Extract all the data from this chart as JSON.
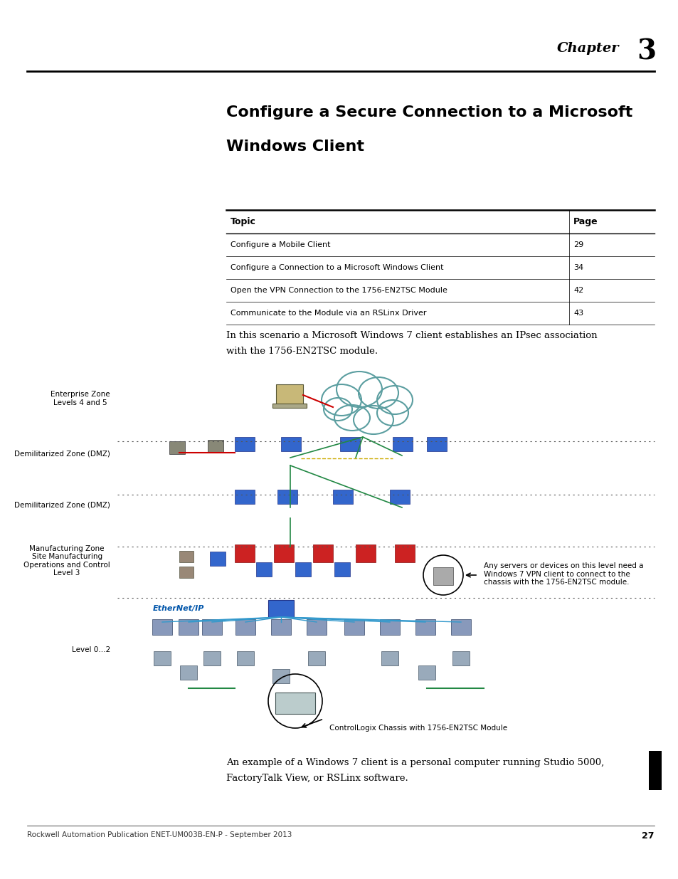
{
  "page_background": "#ffffff",
  "chapter_label": "Chapter",
  "chapter_number": "3",
  "title_line1": "Configure a Secure Connection to a Microsoft",
  "title_line2": "Windows Client",
  "table_headers": [
    "Topic",
    "Page"
  ],
  "table_rows": [
    [
      "Configure a Mobile Client",
      "29"
    ],
    [
      "Configure a Connection to a Microsoft Windows Client",
      "34"
    ],
    [
      "Open the VPN Connection to the 1756-EN2TSC Module",
      "42"
    ],
    [
      "Communicate to the Module via an RSLinx Driver",
      "43"
    ]
  ],
  "intro_text_line1": "In this scenario a Microsoft Windows 7 client establishes an IPsec association",
  "intro_text_line2": "with the 1756-EN2TSC module.",
  "annotation_right": "Any servers or devices on this level need a\nWindows 7 VPN client to connect to the\nchassis with the 1756-EN2TSC module.",
  "annotation_bottom": "ControlLogix Chassis with 1756-EN2TSC Module",
  "footer_text": "Rockwell Automation Publication ENET-UM003B-EN-P - September 2013",
  "footer_page": "27",
  "body_text_bottom_line1": "An example of a Windows 7 client is a personal computer running Studio 5000,",
  "body_text_bottom_line2": "FactoryTalk View, or RSLinx software."
}
